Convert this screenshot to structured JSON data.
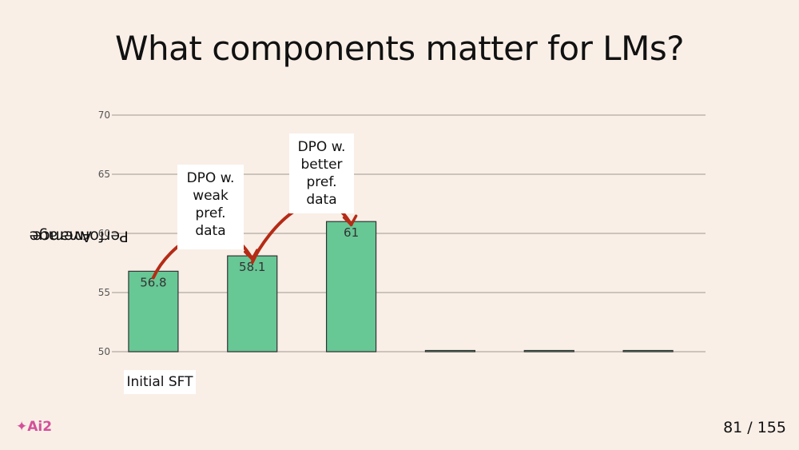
{
  "slide": {
    "title": "What components matter for LMs?",
    "page_number": "81 / 155",
    "logo_text": "✦Ai2"
  },
  "chart_data": {
    "type": "bar",
    "categories": [
      "Initial SFT",
      "",
      "",
      "",
      "",
      ""
    ],
    "visible_category_label": "Initial SFT",
    "values": [
      56.8,
      58.1,
      61,
      50,
      50,
      50
    ],
    "data_labels": [
      "56.8",
      "58.1",
      "61",
      "",
      "",
      ""
    ],
    "ylabel_lines": [
      "Average",
      "Performance"
    ],
    "ylim": [
      50,
      70
    ],
    "yticks": [
      50,
      55,
      60,
      65,
      70
    ],
    "grid": true,
    "bar_color": "#67c795",
    "annotations": [
      {
        "lines": [
          "DPO w.",
          "weak",
          "pref. data"
        ],
        "from_bar": 0,
        "to_bar": 1
      },
      {
        "lines": [
          "DPO w.",
          "better",
          "pref. data"
        ],
        "from_bar": 1,
        "to_bar": 2
      }
    ],
    "arrow_color": "#b52b16"
  }
}
